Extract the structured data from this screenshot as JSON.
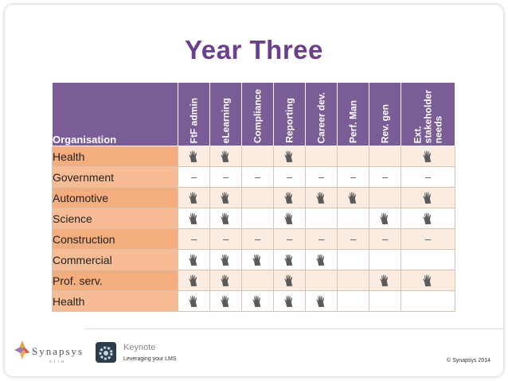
{
  "title": "Year Three",
  "table": {
    "corner_label": "Organisation",
    "columns": [
      "FtF admin",
      "eLearning",
      "Compliance",
      "Reporting",
      "Career dev.",
      "Perf. Man",
      "Rev. gen",
      "Ext.\nstakeholder\nneeds"
    ],
    "rows": [
      {
        "label": "Health",
        "cells": [
          "hand",
          "hand",
          "",
          "hand",
          "",
          "",
          "",
          "hand"
        ]
      },
      {
        "label": "Government",
        "cells": [
          "–",
          "–",
          "–",
          "–",
          "–",
          "–",
          "–",
          "–"
        ]
      },
      {
        "label": "Automotive",
        "cells": [
          "hand",
          "hand",
          "",
          "hand",
          "hand",
          "hand",
          "",
          "hand"
        ]
      },
      {
        "label": "Science",
        "cells": [
          "hand",
          "hand",
          "",
          "hand",
          "",
          "",
          "hand",
          "hand"
        ]
      },
      {
        "label": "Construction",
        "cells": [
          "–",
          "–",
          "–",
          "–",
          "–",
          "–",
          "–",
          "–"
        ]
      },
      {
        "label": "Commercial",
        "cells": [
          "hand",
          "hand",
          "hand",
          "hand",
          "hand",
          "",
          "",
          ""
        ]
      },
      {
        "label": "Prof. serv.",
        "cells": [
          "hand",
          "hand",
          "",
          "hand",
          "",
          "",
          "hand",
          "hand"
        ]
      },
      {
        "label": "Health",
        "cells": [
          "hand",
          "hand",
          "hand",
          "hand",
          "hand",
          "",
          "",
          ""
        ]
      }
    ]
  },
  "footer": {
    "logo_text": "Synapsys",
    "logo_tagline": "e l i a",
    "app_name": "Keynote",
    "subtitle": "Leveraging your LMS",
    "copyright": "© Synapsys 2014"
  },
  "colors": {
    "title": "#6b3f8f",
    "header_bg": "#7b5d96",
    "row_label_bg": "#f4ad7c",
    "hand": "#5a5a5a"
  },
  "icons": {
    "hand": "hand-icon",
    "keynote": "keynote-icon",
    "logo": "synapsys-logo"
  }
}
